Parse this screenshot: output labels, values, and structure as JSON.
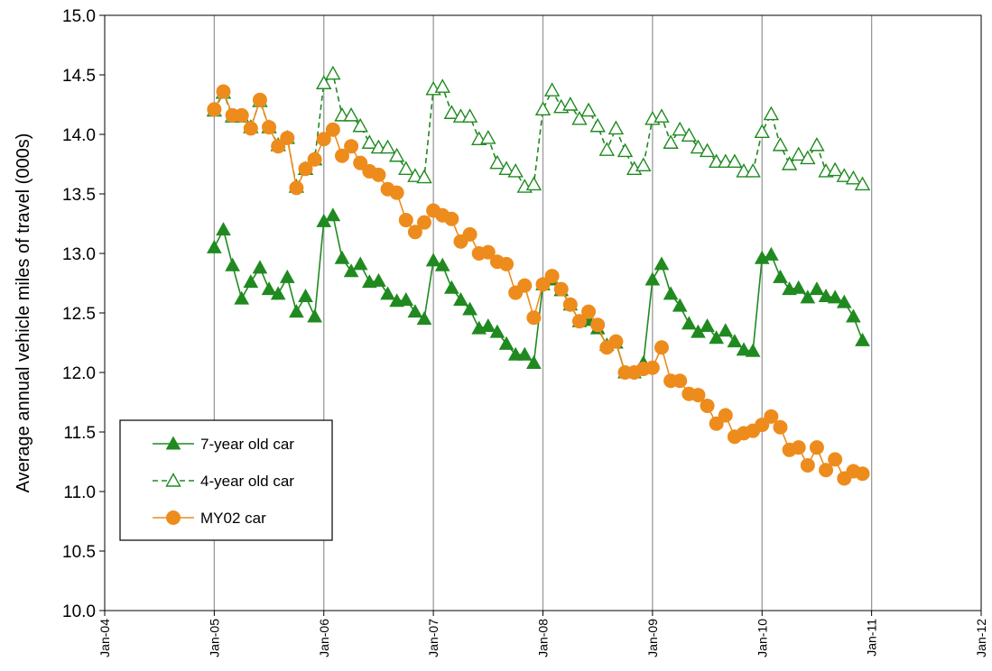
{
  "chart_data": {
    "type": "line",
    "title": "",
    "xlabel": "",
    "ylabel": "Average annual vehicle miles of travel (000s)",
    "ylim": [
      10.0,
      15.0
    ],
    "xlim": [
      "2004-01",
      "2012-01"
    ],
    "y_ticks": [
      "10.0",
      "10.5",
      "11.0",
      "11.5",
      "12.0",
      "12.5",
      "13.0",
      "13.5",
      "14.0",
      "14.5",
      "15.0"
    ],
    "x_ticks": [
      "Jan-04",
      "Jan-05",
      "Jan-06",
      "Jan-07",
      "Jan-08",
      "Jan-09",
      "Jan-10",
      "Jan-11",
      "Jan-12"
    ],
    "grid": "vertical gridlines at each January",
    "legend_position": "lower-left",
    "x": [
      "2005-01",
      "2005-02",
      "2005-03",
      "2005-04",
      "2005-05",
      "2005-06",
      "2005-07",
      "2005-08",
      "2005-09",
      "2005-10",
      "2005-11",
      "2005-12",
      "2006-01",
      "2006-02",
      "2006-03",
      "2006-04",
      "2006-05",
      "2006-06",
      "2006-07",
      "2006-08",
      "2006-09",
      "2006-10",
      "2006-11",
      "2006-12",
      "2007-01",
      "2007-02",
      "2007-03",
      "2007-04",
      "2007-05",
      "2007-06",
      "2007-07",
      "2007-08",
      "2007-09",
      "2007-10",
      "2007-11",
      "2007-12",
      "2008-01",
      "2008-02",
      "2008-03",
      "2008-04",
      "2008-05",
      "2008-06",
      "2008-07",
      "2008-08",
      "2008-09",
      "2008-10",
      "2008-11",
      "2008-12",
      "2009-01",
      "2009-02",
      "2009-03",
      "2009-04",
      "2009-05",
      "2009-06",
      "2009-07",
      "2009-08",
      "2009-09",
      "2009-10",
      "2009-11",
      "2009-12",
      "2010-01",
      "2010-02",
      "2010-03",
      "2010-04",
      "2010-05",
      "2010-06",
      "2010-07",
      "2010-08",
      "2010-09",
      "2010-10",
      "2010-11",
      "2010-12"
    ],
    "series": [
      {
        "name": "7-year old car",
        "color": "#208a20",
        "marker": "filled-triangle",
        "line": "solid",
        "values": [
          13.05,
          13.2,
          12.9,
          12.62,
          12.76,
          12.88,
          12.7,
          12.66,
          12.8,
          12.51,
          12.64,
          12.47,
          13.27,
          13.32,
          12.96,
          12.85,
          12.91,
          12.76,
          12.77,
          12.66,
          12.6,
          12.61,
          12.51,
          12.45,
          12.94,
          12.9,
          12.71,
          12.61,
          12.53,
          12.37,
          12.39,
          12.34,
          12.24,
          12.15,
          12.15,
          12.08,
          12.74,
          12.78,
          12.69,
          12.57,
          12.43,
          12.44,
          12.37,
          12.23,
          12.25,
          12.0,
          12.0,
          12.08,
          12.78,
          12.91,
          12.66,
          12.56,
          12.41,
          12.34,
          12.39,
          12.29,
          12.35,
          12.26,
          12.19,
          12.18,
          12.96,
          12.99,
          12.8,
          12.7,
          12.71,
          12.63,
          12.7,
          12.64,
          12.63,
          12.59,
          12.47,
          12.27
        ]
      },
      {
        "name": "4-year old car",
        "color": "#208a20",
        "marker": "open-triangle",
        "line": "dashed",
        "values": [
          14.2,
          14.35,
          14.15,
          14.15,
          14.06,
          14.28,
          14.06,
          13.91,
          13.97,
          13.56,
          13.71,
          13.79,
          14.43,
          14.51,
          14.16,
          14.16,
          14.07,
          13.93,
          13.89,
          13.89,
          13.82,
          13.71,
          13.65,
          13.64,
          14.38,
          14.4,
          14.18,
          14.15,
          14.15,
          13.96,
          13.97,
          13.76,
          13.71,
          13.69,
          13.56,
          13.58,
          14.21,
          14.37,
          14.23,
          14.25,
          14.13,
          14.2,
          14.07,
          13.87,
          14.05,
          13.86,
          13.71,
          13.74,
          14.13,
          14.15,
          13.93,
          14.04,
          13.99,
          13.89,
          13.86,
          13.77,
          13.77,
          13.77,
          13.69,
          13.69,
          14.02,
          14.17,
          13.91,
          13.75,
          13.83,
          13.8,
          13.91,
          13.69,
          13.7,
          13.65,
          13.63,
          13.58
        ]
      },
      {
        "name": "MY02 car",
        "color": "#ed8c1c",
        "marker": "filled-circle",
        "line": "solid",
        "values": [
          14.21,
          14.36,
          14.16,
          14.16,
          14.05,
          14.29,
          14.06,
          13.9,
          13.97,
          13.55,
          13.71,
          13.79,
          13.96,
          14.04,
          13.82,
          13.9,
          13.76,
          13.69,
          13.66,
          13.54,
          13.51,
          13.28,
          13.18,
          13.26,
          13.36,
          13.32,
          13.29,
          13.1,
          13.16,
          13.0,
          13.01,
          12.93,
          12.91,
          12.67,
          12.73,
          12.46,
          12.74,
          12.81,
          12.7,
          12.57,
          12.43,
          12.51,
          12.4,
          12.21,
          12.26,
          12.0,
          12.0,
          12.03,
          12.04,
          12.21,
          11.93,
          11.93,
          11.82,
          11.81,
          11.72,
          11.57,
          11.64,
          11.46,
          11.49,
          11.51,
          11.56,
          11.63,
          11.54,
          11.35,
          11.37,
          11.22,
          11.37,
          11.18,
          11.27,
          11.11,
          11.17,
          11.15
        ]
      }
    ]
  }
}
